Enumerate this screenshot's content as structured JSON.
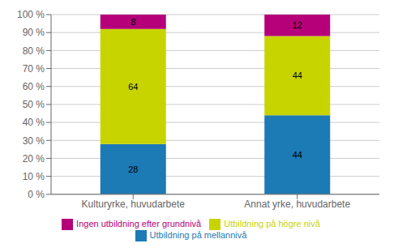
{
  "chart_data": {
    "type": "bar",
    "stacked": true,
    "categories": [
      "Kulturyrke, huvudarbete",
      "Annat yrke, huvudarbete"
    ],
    "series": [
      {
        "name": "Utbildning på mellannivå",
        "color": "#1c7ab5",
        "values": [
          28,
          44
        ]
      },
      {
        "name": "Utbildning på högre nivå",
        "color": "#c8d400",
        "values": [
          64,
          44
        ]
      },
      {
        "name": "Ingen utbildning efter grundnivå",
        "color": "#b5007a",
        "values": [
          8,
          12
        ]
      }
    ],
    "ylim": [
      0,
      100
    ],
    "yticks": [
      {
        "value": 0,
        "label": "0 %"
      },
      {
        "value": 10,
        "label": "10 %"
      },
      {
        "value": 20,
        "label": "20 %"
      },
      {
        "value": 30,
        "label": "30 %"
      },
      {
        "value": 40,
        "label": "40 %"
      },
      {
        "value": 50,
        "label": "50 %"
      },
      {
        "value": 60,
        "label": "60 %"
      },
      {
        "value": 70,
        "label": "70 %"
      },
      {
        "value": 80,
        "label": "80 %"
      },
      {
        "value": 90,
        "label": "90 %"
      },
      {
        "value": 100,
        "label": "100 %"
      }
    ],
    "grid": true,
    "data_labels": true,
    "legend": "bottom"
  }
}
